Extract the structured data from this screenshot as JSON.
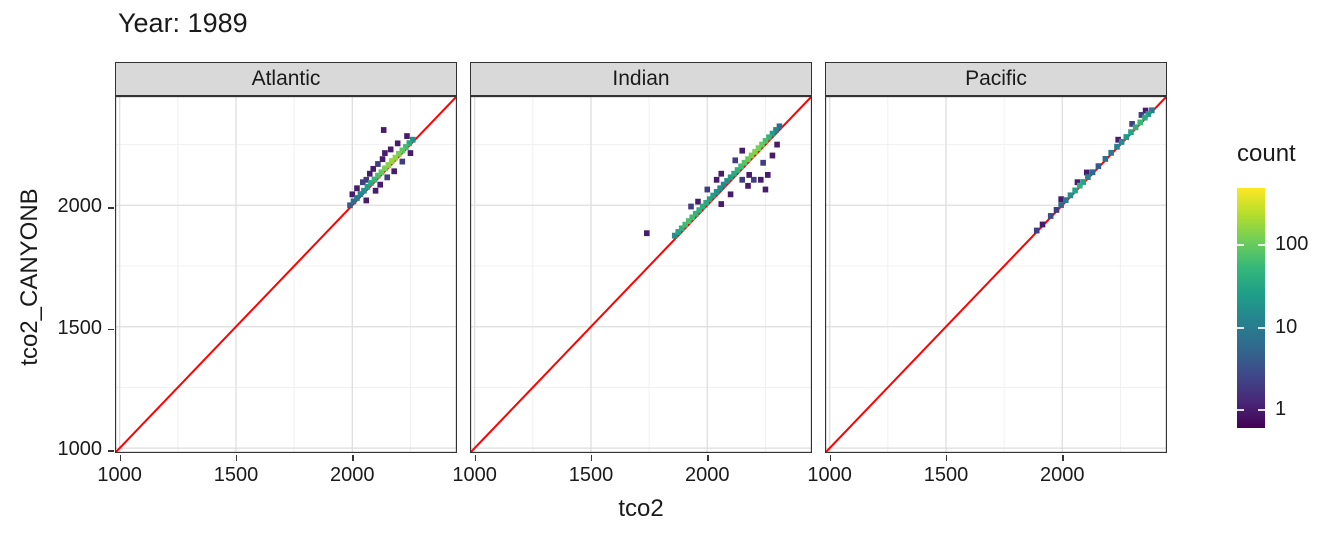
{
  "title": "Year: 1989",
  "axes": {
    "x_label": "tco2",
    "y_label": "tco2_CANYONB",
    "x_ticks": [
      1000,
      1500,
      2000
    ],
    "y_ticks": [
      1000,
      1500,
      2000
    ],
    "minor_ticks": [
      1250,
      1750,
      2250
    ],
    "min": 980,
    "max": 2450
  },
  "legend": {
    "title": "count",
    "labels": [
      100,
      10,
      1
    ],
    "domain": [
      0.6,
      500
    ]
  },
  "colors": {
    "identity_line": "#FF0000",
    "strip_bg": "#D9D9D9",
    "strip_border": "#333333",
    "panel_border": "#333333",
    "grid_major": "#DEDEDE",
    "grid_minor": "#F0F0F0",
    "viridis": [
      "#440154",
      "#482878",
      "#3E4989",
      "#31688E",
      "#26828E",
      "#1F9E89",
      "#35B779",
      "#6DCD59",
      "#B4DE2C",
      "#FDE725"
    ]
  },
  "chart_data": {
    "type": "heatmap",
    "subtype": "bin2d",
    "title": "Year: 1989",
    "xlabel": "tco2",
    "ylabel": "tco2_CANYONB",
    "xlim": [
      980,
      2450
    ],
    "ylim": [
      980,
      2450
    ],
    "bin_size": 24,
    "identity_line": true,
    "legend_title": "count",
    "legend_scale": "log10",
    "facets": [
      {
        "name": "Atlantic",
        "bins": [
          [
            1990,
            2000,
            4
          ],
          [
            2005,
            2016,
            6
          ],
          [
            2020,
            2030,
            9
          ],
          [
            2035,
            2046,
            12
          ],
          [
            2050,
            2060,
            18
          ],
          [
            2065,
            2076,
            25
          ],
          [
            2080,
            2092,
            35
          ],
          [
            2095,
            2106,
            50
          ],
          [
            2110,
            2122,
            70
          ],
          [
            2125,
            2136,
            95
          ],
          [
            2140,
            2152,
            120
          ],
          [
            2155,
            2166,
            150
          ],
          [
            2170,
            2182,
            170
          ],
          [
            2185,
            2196,
            150
          ],
          [
            2200,
            2212,
            120
          ],
          [
            2215,
            2226,
            90
          ],
          [
            2230,
            2240,
            60
          ],
          [
            2245,
            2256,
            35
          ],
          [
            2260,
            2270,
            18
          ],
          [
            2000,
            2045,
            1
          ],
          [
            2020,
            2070,
            1
          ],
          [
            2045,
            2095,
            2
          ],
          [
            2060,
            2020,
            1
          ],
          [
            2075,
            2130,
            1
          ],
          [
            2090,
            2150,
            1
          ],
          [
            2110,
            2170,
            2
          ],
          [
            2130,
            2190,
            1
          ],
          [
            2135,
            2310,
            1
          ],
          [
            2150,
            2115,
            2
          ],
          [
            2165,
            2230,
            1
          ],
          [
            2180,
            2140,
            1
          ],
          [
            2195,
            2255,
            1
          ],
          [
            2215,
            2180,
            2
          ],
          [
            2235,
            2285,
            1
          ],
          [
            2250,
            2215,
            1
          ],
          [
            2060,
            2105,
            2
          ],
          [
            2100,
            2060,
            1
          ],
          [
            2120,
            2085,
            1
          ],
          [
            2140,
            2215,
            1
          ]
        ]
      },
      {
        "name": "Indian",
        "bins": [
          [
            1860,
            1875,
            18
          ],
          [
            1875,
            1890,
            30
          ],
          [
            1890,
            1905,
            45
          ],
          [
            1905,
            1920,
            60
          ],
          [
            1920,
            1935,
            70
          ],
          [
            1935,
            1950,
            60
          ],
          [
            1950,
            1965,
            50
          ],
          [
            1965,
            1980,
            45
          ],
          [
            1980,
            1995,
            40
          ],
          [
            1995,
            2010,
            35
          ],
          [
            2010,
            2025,
            30
          ],
          [
            2025,
            2040,
            25
          ],
          [
            2040,
            2055,
            20
          ],
          [
            2055,
            2070,
            16
          ],
          [
            2070,
            2085,
            14
          ],
          [
            2085,
            2100,
            18
          ],
          [
            2100,
            2115,
            25
          ],
          [
            2115,
            2130,
            35
          ],
          [
            2130,
            2145,
            45
          ],
          [
            2145,
            2160,
            60
          ],
          [
            2160,
            2175,
            80
          ],
          [
            2175,
            2190,
            100
          ],
          [
            2190,
            2205,
            120
          ],
          [
            2205,
            2220,
            140
          ],
          [
            2220,
            2235,
            120
          ],
          [
            2235,
            2250,
            95
          ],
          [
            2250,
            2265,
            70
          ],
          [
            2265,
            2280,
            45
          ],
          [
            2280,
            2295,
            25
          ],
          [
            2295,
            2310,
            12
          ],
          [
            2310,
            2325,
            6
          ],
          [
            1740,
            1885,
            1
          ],
          [
            1930,
            1995,
            2
          ],
          [
            1960,
            2015,
            1
          ],
          [
            2000,
            2065,
            2
          ],
          [
            2040,
            2105,
            1
          ],
          [
            2060,
            2005,
            1
          ],
          [
            2100,
            2045,
            1
          ],
          [
            2150,
            2105,
            2
          ],
          [
            2180,
            2125,
            1
          ],
          [
            2200,
            2105,
            2
          ],
          [
            2230,
            2105,
            1
          ],
          [
            2250,
            2065,
            1
          ],
          [
            2260,
            2125,
            1
          ],
          [
            2280,
            2205,
            1
          ],
          [
            2240,
            2175,
            2
          ],
          [
            2150,
            2225,
            1
          ],
          [
            2120,
            2185,
            2
          ],
          [
            2175,
            2080,
            1
          ],
          [
            2300,
            2250,
            1
          ],
          [
            2060,
            2130,
            1
          ]
        ]
      },
      {
        "name": "Pacific",
        "bins": [
          [
            1890,
            1896,
            2
          ],
          [
            1915,
            1921,
            1
          ],
          [
            1950,
            1956,
            3
          ],
          [
            1975,
            1981,
            2
          ],
          [
            1995,
            2001,
            5
          ],
          [
            2015,
            2021,
            9
          ],
          [
            2035,
            2041,
            16
          ],
          [
            2055,
            2061,
            30
          ],
          [
            2075,
            2081,
            42
          ],
          [
            2090,
            2096,
            28
          ],
          [
            2110,
            2116,
            12
          ],
          [
            2130,
            2136,
            6
          ],
          [
            2155,
            2161,
            4
          ],
          [
            2185,
            2191,
            7
          ],
          [
            2210,
            2216,
            9
          ],
          [
            2235,
            2241,
            12
          ],
          [
            2255,
            2261,
            16
          ],
          [
            2275,
            2281,
            22
          ],
          [
            2295,
            2301,
            30
          ],
          [
            2315,
            2321,
            42
          ],
          [
            2335,
            2341,
            55
          ],
          [
            2355,
            2361,
            38
          ],
          [
            2370,
            2376,
            22
          ],
          [
            2385,
            2391,
            10
          ],
          [
            2065,
            2095,
            1
          ],
          [
            2105,
            2135,
            1
          ],
          [
            2300,
            2335,
            2
          ],
          [
            2340,
            2372,
            2
          ],
          [
            2358,
            2390,
            1
          ],
          [
            1995,
            2025,
            1
          ],
          [
            2240,
            2270,
            1
          ]
        ]
      }
    ]
  }
}
